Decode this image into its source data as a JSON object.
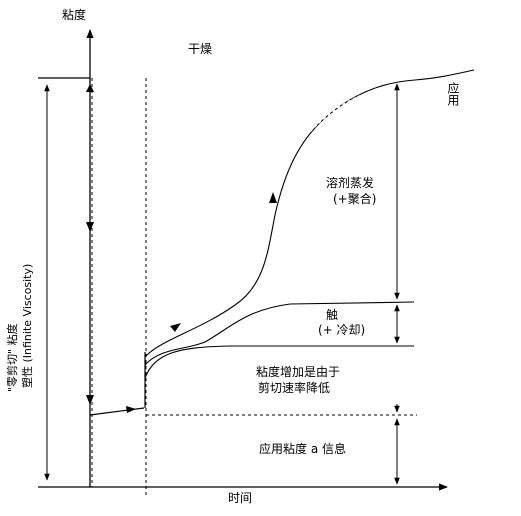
{
  "axes": {
    "y_label": "粘度",
    "x_label": "时间"
  },
  "left_labels": {
    "line1": "\"零剪切\" 粘度",
    "line2": "塑性 (Infinite Viscosity)"
  },
  "phases": {
    "drying": "干燥",
    "application": "应用"
  },
  "annotations": {
    "solvent_evap_line1": "溶剂蒸发",
    "solvent_evap_line2": "(+聚合)",
    "touch_line1": "触",
    "touch_line2": "(+ 冷却)",
    "shear_line1": "粘度增加是由于",
    "shear_line2": "剪切速率降低",
    "info": "应用粘度 a 信息"
  }
}
